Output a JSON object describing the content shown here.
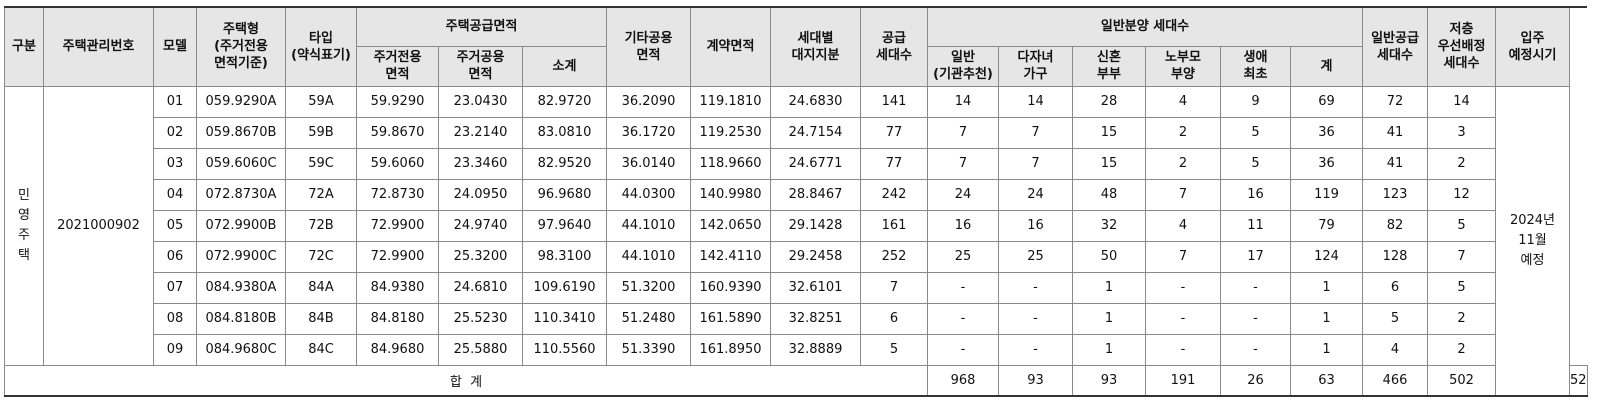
{
  "table": {
    "headers": {
      "category": "구분",
      "management_no": "주택관리번호",
      "model": "모델",
      "housing_type": "주택형\n(주거전용\n면적기준)",
      "type_short": "타입\n(약식표기)",
      "supply_area": "주택공급면적",
      "exclusive_area": "주거전용\n면적",
      "common_area": "주거공용\n면적",
      "subtotal": "소계",
      "other_common_area": "기타공용\n면적",
      "contract_area": "계약면적",
      "land_share": "세대별\n대지지분",
      "supply_units": "공급\n세대수",
      "general_sale_units": "일반분양 세대수",
      "general": "일반\n(기관추천)",
      "multi_child": "다자녀\n가구",
      "newlywed": "신혼\n부부",
      "elderly_parents": "노부모\n부양",
      "first_time": "생애\n최초",
      "sum": "계",
      "general_supply_units": "일반공급\n세대수",
      "low_floor_priority": "저층\n우선배정\n세대수",
      "move_in": "입주\n예정시기"
    },
    "category_value": "민\n영\n주\n택",
    "management_no_value": "2021000902",
    "move_in_value": "2024년\n11월\n예정",
    "rows": [
      [
        "01",
        "059.9290A",
        "59A",
        "59.9290",
        "23.0430",
        "82.9720",
        "36.2090",
        "119.1810",
        "24.6830",
        "141",
        "14",
        "14",
        "28",
        "4",
        "9",
        "69",
        "72",
        "14"
      ],
      [
        "02",
        "059.8670B",
        "59B",
        "59.8670",
        "23.2140",
        "83.0810",
        "36.1720",
        "119.2530",
        "24.7154",
        "77",
        "7",
        "7",
        "15",
        "2",
        "5",
        "36",
        "41",
        "3"
      ],
      [
        "03",
        "059.6060C",
        "59C",
        "59.6060",
        "23.3460",
        "82.9520",
        "36.0140",
        "118.9660",
        "24.6771",
        "77",
        "7",
        "7",
        "15",
        "2",
        "5",
        "36",
        "41",
        "2"
      ],
      [
        "04",
        "072.8730A",
        "72A",
        "72.8730",
        "24.0950",
        "96.9680",
        "44.0300",
        "140.9980",
        "28.8467",
        "242",
        "24",
        "24",
        "48",
        "7",
        "16",
        "119",
        "123",
        "12"
      ],
      [
        "05",
        "072.9900B",
        "72B",
        "72.9900",
        "24.9740",
        "97.9640",
        "44.1010",
        "142.0650",
        "29.1428",
        "161",
        "16",
        "16",
        "32",
        "4",
        "11",
        "79",
        "82",
        "5"
      ],
      [
        "06",
        "072.9900C",
        "72C",
        "72.9900",
        "25.3200",
        "98.3100",
        "44.1010",
        "142.4110",
        "29.2458",
        "252",
        "25",
        "25",
        "50",
        "7",
        "17",
        "124",
        "128",
        "7"
      ],
      [
        "07",
        "084.9380A",
        "84A",
        "84.9380",
        "24.6810",
        "109.6190",
        "51.3200",
        "160.9390",
        "32.6101",
        "7",
        "-",
        "-",
        "1",
        "-",
        "-",
        "1",
        "6",
        "5"
      ],
      [
        "08",
        "084.8180B",
        "84B",
        "84.8180",
        "25.5230",
        "110.3410",
        "51.2480",
        "161.5890",
        "32.8251",
        "6",
        "-",
        "-",
        "1",
        "-",
        "-",
        "1",
        "5",
        "2"
      ],
      [
        "09",
        "084.9680C",
        "84C",
        "84.9680",
        "25.5880",
        "110.5560",
        "51.3390",
        "161.8950",
        "32.8889",
        "5",
        "-",
        "-",
        "1",
        "-",
        "-",
        "1",
        "4",
        "2"
      ]
    ],
    "total": {
      "label": "합  계",
      "values": [
        "968",
        "93",
        "93",
        "191",
        "26",
        "63",
        "466",
        "502",
        "52"
      ]
    }
  }
}
